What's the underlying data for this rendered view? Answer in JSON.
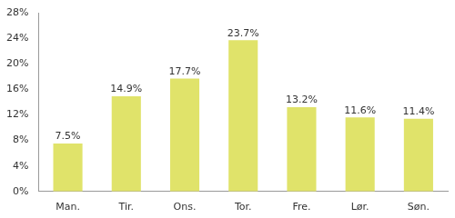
{
  "chart_data": {
    "type": "bar",
    "categories": [
      "Man.",
      "Tir.",
      "Ons.",
      "Tor.",
      "Fre.",
      "Lør.",
      "Søn."
    ],
    "values": [
      7.5,
      14.9,
      17.7,
      23.7,
      13.2,
      11.6,
      11.4
    ],
    "value_labels": [
      "7.5%",
      "14.9%",
      "17.7%",
      "23.7%",
      "13.2%",
      "11.6%",
      "11.4%"
    ],
    "data_labels": true,
    "color": "#e0e36a",
    "ylim": [
      0,
      28
    ],
    "yticks": [
      {
        "value": 0,
        "label": "0%"
      },
      {
        "value": 4,
        "label": "4%"
      },
      {
        "value": 8,
        "label": "8%"
      },
      {
        "value": 12,
        "label": "12%"
      },
      {
        "value": 16,
        "label": "16%"
      },
      {
        "value": 20,
        "label": "20%"
      },
      {
        "value": 24,
        "label": "24%"
      },
      {
        "value": 28,
        "label": "28%"
      }
    ],
    "grid": false
  }
}
